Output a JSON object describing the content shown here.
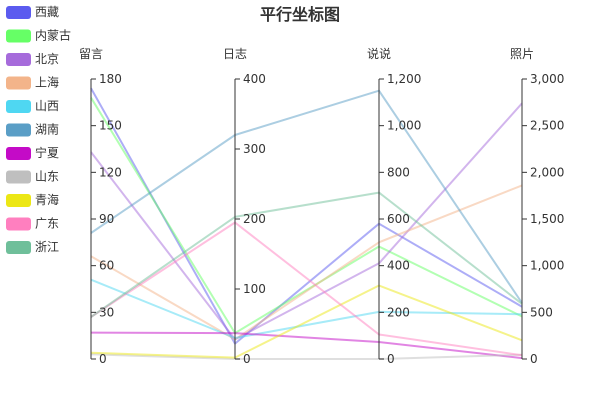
{
  "chart_data": {
    "type": "parallel",
    "title": "平行坐标图",
    "legend_position": "left",
    "axes": [
      {
        "name": "留言",
        "min": 0,
        "max": 180,
        "ticks": [
          "0",
          "30",
          "60",
          "90",
          "120",
          "150",
          "180"
        ]
      },
      {
        "name": "日志",
        "min": 0,
        "max": 400,
        "ticks": [
          "0",
          "100",
          "200",
          "300",
          "400"
        ]
      },
      {
        "name": "说说",
        "min": 0,
        "max": 1200,
        "ticks": [
          "0",
          "200",
          "400",
          "600",
          "800",
          "1,000",
          "1,200"
        ]
      },
      {
        "name": "照片",
        "min": 0,
        "max": 3000,
        "ticks": [
          "0",
          "500",
          "1,000",
          "1,500",
          "2,000",
          "2,500",
          "3,000"
        ]
      }
    ],
    "series": [
      {
        "name": "西藏",
        "color": "#5b5bef",
        "values": [
          174,
          22,
          580,
          560
        ]
      },
      {
        "name": "内蒙古",
        "color": "#66ff66",
        "values": [
          168,
          37,
          482,
          455
        ]
      },
      {
        "name": "北京",
        "color": "#a66bdb",
        "values": [
          133,
          28,
          410,
          2740
        ]
      },
      {
        "name": "上海",
        "color": "#f3b48a",
        "values": [
          66,
          28,
          500,
          1860
        ]
      },
      {
        "name": "山西",
        "color": "#4fd7f2",
        "values": [
          51,
          30,
          202,
          480
        ]
      },
      {
        "name": "湖南",
        "color": "#5a9ec6",
        "values": [
          81,
          320,
          1150,
          600
        ]
      },
      {
        "name": "宁夏",
        "color": "#c40bc7",
        "values": [
          17,
          37,
          73,
          10
        ]
      },
      {
        "name": "山东",
        "color": "#bfbfbf",
        "values": [
          3,
          0,
          0,
          45
        ]
      },
      {
        "name": "青海",
        "color": "#ece715",
        "values": [
          4,
          2,
          315,
          200
        ]
      },
      {
        "name": "广东",
        "color": "#ff7fbf",
        "values": [
          27,
          195,
          105,
          40
        ]
      },
      {
        "name": "浙江",
        "color": "#6fbf9a",
        "values": [
          27,
          203,
          713,
          590
        ]
      }
    ]
  }
}
